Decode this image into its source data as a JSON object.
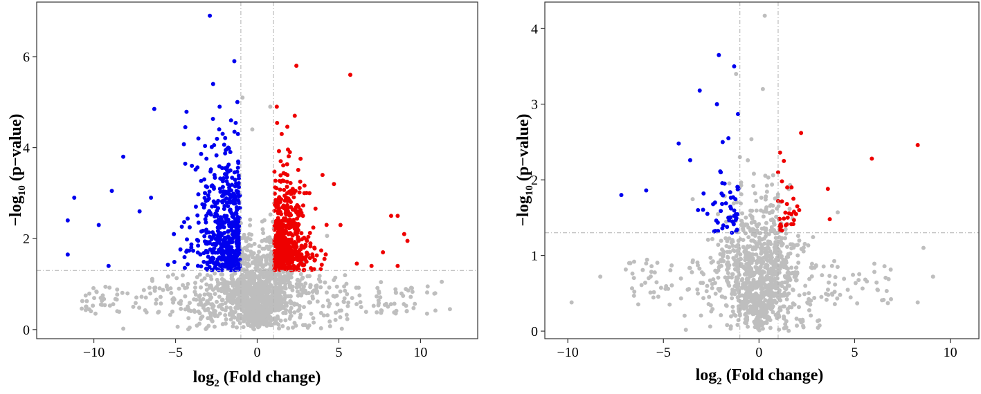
{
  "chart_data": [
    {
      "type": "scatter",
      "title": "",
      "xlabel": {
        "main": "log",
        "sub": "2",
        "rest": " (Fold change)"
      },
      "ylabel": {
        "pre": "−log",
        "sub": "10",
        "rest": " (p−value)"
      },
      "xlim": [
        -13.5,
        13.5
      ],
      "ylim": [
        -0.2,
        7.2
      ],
      "xticks": [
        -10,
        -5,
        0,
        5,
        10
      ],
      "xtick_labels": [
        "−10",
        "−5",
        "0",
        "5",
        "10"
      ],
      "yticks": [
        0,
        2,
        4,
        6
      ],
      "ytick_labels": [
        "0",
        "2",
        "4",
        "6"
      ],
      "fc_threshold": [
        -1,
        1
      ],
      "p_threshold": 1.3,
      "colors": {
        "down": "#0000ee",
        "up": "#ee0000",
        "ns": "#bebebe"
      },
      "highlighted_points": {
        "down": [
          [
            -2.9,
            6.9
          ],
          [
            -1.4,
            5.9
          ],
          [
            -2.7,
            5.4
          ],
          [
            -6.3,
            4.85
          ],
          [
            -8.2,
            3.8
          ],
          [
            -11.2,
            2.9
          ],
          [
            -11.6,
            2.4
          ],
          [
            -11.6,
            1.65
          ],
          [
            -9.7,
            2.3
          ],
          [
            -8.9,
            3.05
          ],
          [
            -4.4,
            4.45
          ],
          [
            -2.3,
            4.9
          ],
          [
            -3.6,
            4.2
          ],
          [
            -7.2,
            2.6
          ],
          [
            -6.5,
            2.9
          ],
          [
            -9.1,
            1.4
          ],
          [
            -5.1,
            2.1
          ],
          [
            -4.0,
            3.6
          ],
          [
            -1.6,
            4.6
          ],
          [
            -2.0,
            2.5
          ],
          [
            -1.8,
            3.2
          ],
          [
            -3.0,
            1.6
          ]
        ],
        "up": [
          [
            2.4,
            5.8
          ],
          [
            5.7,
            5.6
          ],
          [
            1.2,
            4.9
          ],
          [
            2.3,
            4.7
          ],
          [
            4.0,
            3.4
          ],
          [
            4.7,
            3.2
          ],
          [
            5.1,
            2.3
          ],
          [
            8.2,
            2.5
          ],
          [
            8.6,
            2.5
          ],
          [
            9.0,
            2.1
          ],
          [
            7.7,
            1.7
          ],
          [
            9.2,
            1.95
          ],
          [
            8.6,
            1.4
          ],
          [
            6.1,
            1.45
          ],
          [
            7.0,
            1.4
          ],
          [
            3.2,
            3.0
          ],
          [
            1.5,
            4.3
          ],
          [
            2.0,
            3.9
          ],
          [
            1.3,
            2.2
          ],
          [
            1.8,
            1.6
          ],
          [
            2.6,
            2.6
          ],
          [
            3.5,
            1.8
          ]
        ],
        "ns_outliers": [
          [
            11.8,
            0.45
          ],
          [
            11.3,
            1.05
          ],
          [
            10.9,
            0.8
          ],
          [
            10.4,
            0.35
          ],
          [
            -9.9,
            0.35
          ],
          [
            -10.5,
            0.75
          ],
          [
            0.8,
            4.9
          ],
          [
            -0.9,
            5.1
          ],
          [
            -0.3,
            4.4
          ]
        ]
      }
    },
    {
      "type": "scatter",
      "title": "",
      "xlabel": {
        "main": "log",
        "sub": "2",
        "rest": " (Fold change)"
      },
      "ylabel": {
        "pre": "−log",
        "sub": "10",
        "rest": " (p−value)"
      },
      "xlim": [
        -11.2,
        11.5
      ],
      "ylim": [
        -0.1,
        4.35
      ],
      "xticks": [
        -10,
        -5,
        0,
        5,
        10
      ],
      "xtick_labels": [
        "−10",
        "−5",
        "0",
        "5",
        "10"
      ],
      "yticks": [
        0,
        1,
        2,
        3,
        4
      ],
      "ytick_labels": [
        "0",
        "1",
        "2",
        "3",
        "4"
      ],
      "fc_threshold": [
        -1,
        1
      ],
      "p_threshold": 1.3,
      "colors": {
        "down": "#0000ee",
        "up": "#ee0000",
        "ns": "#bebebe"
      },
      "highlighted_points": {
        "down": [
          [
            -2.1,
            3.65
          ],
          [
            -1.3,
            3.5
          ],
          [
            -3.1,
            3.18
          ],
          [
            -2.2,
            3.0
          ],
          [
            -1.1,
            2.87
          ],
          [
            -1.6,
            2.55
          ],
          [
            -1.9,
            2.5
          ],
          [
            -4.2,
            2.48
          ],
          [
            -3.6,
            2.26
          ],
          [
            -2.0,
            2.1
          ],
          [
            -7.2,
            1.8
          ],
          [
            -5.9,
            1.86
          ],
          [
            -2.9,
            1.82
          ],
          [
            -1.8,
            1.95
          ],
          [
            -2.7,
            1.55
          ],
          [
            -1.6,
            1.5
          ],
          [
            -1.2,
            1.32
          ],
          [
            -2.3,
            1.7
          ],
          [
            -1.4,
            1.45
          ],
          [
            -1.1,
            1.9
          ]
        ],
        "up": [
          [
            8.3,
            2.46
          ],
          [
            5.9,
            2.28
          ],
          [
            2.2,
            2.62
          ],
          [
            1.1,
            2.36
          ],
          [
            1.3,
            2.25
          ],
          [
            1.0,
            2.1
          ],
          [
            3.6,
            1.88
          ],
          [
            3.7,
            1.48
          ],
          [
            1.7,
            1.9
          ],
          [
            1.2,
            1.98
          ],
          [
            1.8,
            1.75
          ],
          [
            2.1,
            1.6
          ],
          [
            1.5,
            1.5
          ],
          [
            1.4,
            1.4
          ],
          [
            2.0,
            1.65
          ],
          [
            1.2,
            1.33
          ],
          [
            1.0,
            1.72
          ]
        ],
        "ns_outliers": [
          [
            0.3,
            4.17
          ],
          [
            0.2,
            3.2
          ],
          [
            -1.2,
            3.4
          ],
          [
            9.1,
            0.72
          ],
          [
            8.6,
            1.1
          ],
          [
            -8.3,
            0.72
          ],
          [
            -9.8,
            0.38
          ],
          [
            8.3,
            0.38
          ]
        ]
      }
    }
  ]
}
